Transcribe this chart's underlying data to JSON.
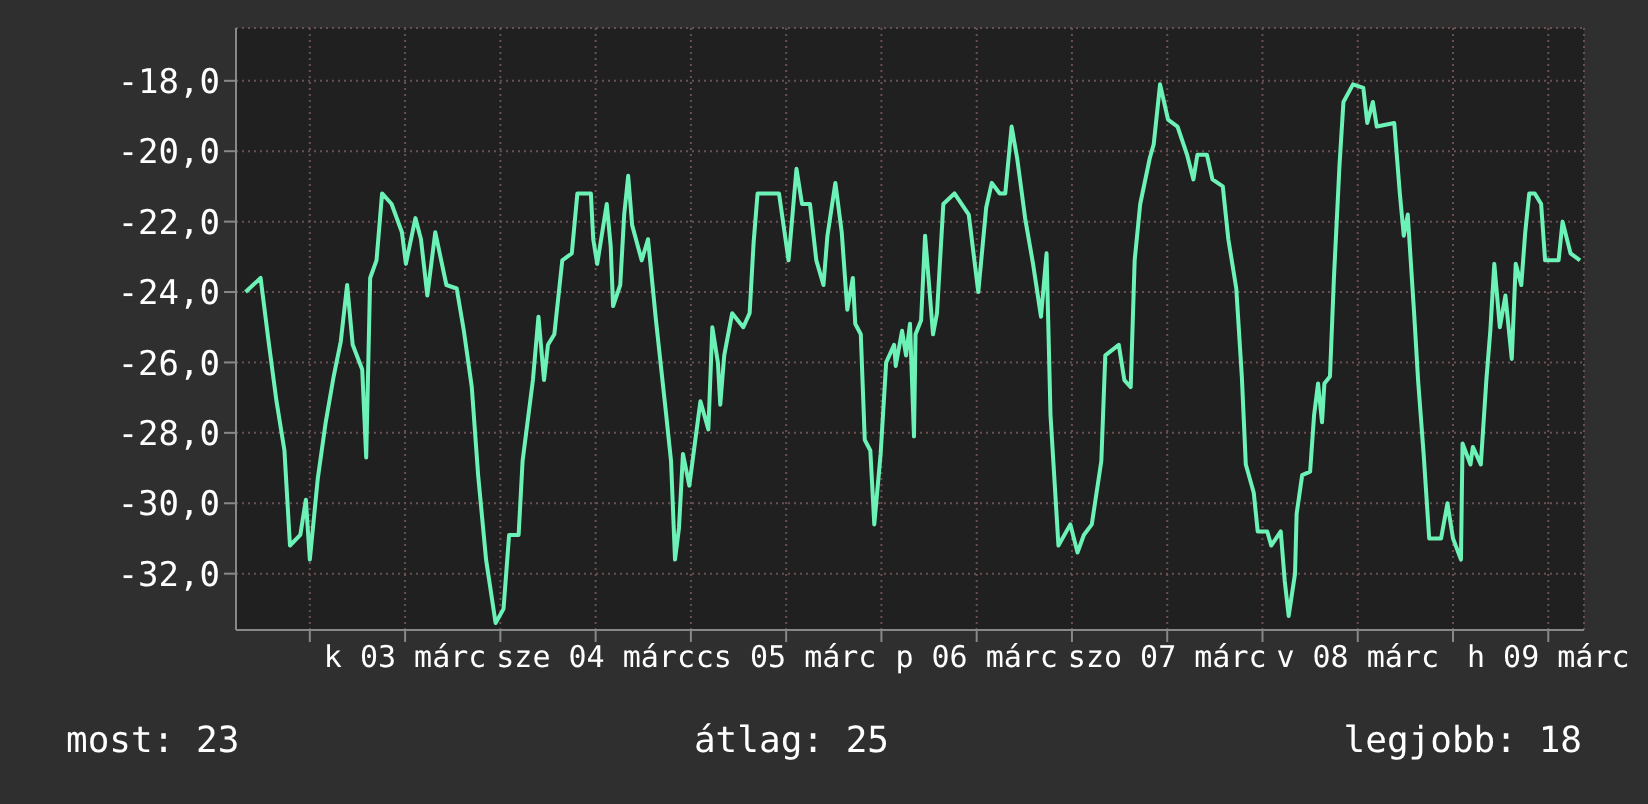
{
  "chart_data": {
    "type": "line",
    "x": [
      "--03-02T15:54",
      "--03-02T17:48",
      "--03-02T18:48",
      "--03-02T19:48",
      "--03-02T20:48",
      "--03-02T21:30",
      "--03-02T22:48",
      "--03-02T23:30",
      "--03-03T00:00",
      "--03-03T01:00",
      "--03-03T02:00",
      "--03-03T03:00",
      "--03-03T03:54",
      "--03-03T04:42",
      "--03-03T05:24",
      "--03-03T06:36",
      "--03-03T07:06",
      "--03-03T07:36",
      "--03-03T08:24",
      "--03-03T09:06",
      "--03-03T10:18",
      "--03-03T11:36",
      "--03-03T12:06",
      "--03-03T13:18",
      "--03-03T14:00",
      "--03-03T14:48",
      "--03-03T15:48",
      "--03-03T17:12",
      "--03-03T18:30",
      "--03-03T19:24",
      "--03-03T20:24",
      "--03-03T21:12",
      "--03-03T22:12",
      "--03-03T23:24",
      "--03-04T00:24",
      "--03-04T01:06",
      "--03-04T02:18",
      "--03-04T02:48",
      "--03-04T04:06",
      "--03-04T04:48",
      "--03-04T05:30",
      "--03-04T06:00",
      "--03-04T06:48",
      "--03-04T07:48",
      "--03-04T09:00",
      "--03-04T09:42",
      "--03-04T11:24",
      "--03-04T11:42",
      "--03-04T12:12",
      "--03-04T13:24",
      "--03-04T13:54",
      "--03-04T14:12",
      "--03-04T15:06",
      "--03-04T15:36",
      "--03-04T16:06",
      "--03-04T16:36",
      "--03-04T17:48",
      "--03-04T18:36",
      "--03-04T19:36",
      "--03-04T20:48",
      "--03-04T21:30",
      "--03-04T22:00",
      "--03-04T22:30",
      "--03-04T23:00",
      "--03-04T23:48",
      "--03-05T00:30",
      "--03-05T01:12",
      "--03-05T02:12",
      "--03-05T02:42",
      "--03-05T03:24",
      "--03-05T03:42",
      "--03-05T04:12",
      "--03-05T05:12",
      "--03-05T06:36",
      "--03-05T07:24",
      "--03-05T07:54",
      "--03-05T08:24",
      "--03-05T11:06",
      "--03-05T12:18",
      "--03-05T13:18",
      "--03-05T14:00",
      "--03-05T15:00",
      "--03-05T15:48",
      "--03-05T16:42",
      "--03-05T17:12",
      "--03-05T18:12",
      "--03-05T19:00",
      "--03-05T19:42",
      "--03-05T20:24",
      "--03-05T20:42",
      "--03-05T21:24",
      "--03-05T21:54",
      "--03-05T22:36",
      "--03-05T23:06",
      "--03-05T23:54",
      "--03-06T00:36",
      "--03-06T01:36",
      "--03-06T01:48",
      "--03-06T02:36",
      "--03-06T03:06",
      "--03-06T03:36",
      "--03-06T04:06",
      "--03-06T04:18",
      "--03-06T05:00",
      "--03-06T05:30",
      "--03-06T06:00",
      "--03-06T06:30",
      "--03-06T07:00",
      "--03-06T07:48",
      "--03-06T09:12",
      "--03-06T11:00",
      "--03-06T12:12",
      "--03-06T13:12",
      "--03-06T13:54",
      "--03-06T14:54",
      "--03-06T15:36",
      "--03-06T16:24",
      "--03-06T17:06",
      "--03-06T18:06",
      "--03-06T19:06",
      "--03-06T20:06",
      "--03-06T20:48",
      "--03-06T21:18",
      "--03-06T22:18",
      "--03-06T23:48",
      "--03-07T00:42",
      "--03-07T01:30",
      "--03-07T02:30",
      "--03-07T03:42",
      "--03-07T04:12",
      "--03-07T05:54",
      "--03-07T06:36",
      "--03-07T07:24",
      "--03-07T07:54",
      "--03-07T08:36",
      "--03-07T09:48",
      "--03-07T10:18",
      "--03-07T11:06",
      "--03-07T12:06",
      "--03-07T13:18",
      "--03-07T14:30",
      "--03-07T15:18",
      "--03-07T15:48",
      "--03-07T17:00",
      "--03-07T17:42",
      "--03-07T19:00",
      "--03-07T19:42",
      "--03-07T20:42",
      "--03-07T21:24",
      "--03-07T21:54",
      "--03-07T22:54",
      "--03-07T23:24",
      "--03-08T00:36",
      "--03-08T01:06",
      "--03-08T02:18",
      "--03-08T02:48",
      "--03-08T03:18",
      "--03-08T04:06",
      "--03-08T04:18",
      "--03-08T05:00",
      "--03-08T06:00",
      "--03-08T06:30",
      "--03-08T07:00",
      "--03-08T07:30",
      "--03-08T07:48",
      "--03-08T08:30",
      "--03-08T09:00",
      "--03-08T09:42",
      "--03-08T10:12",
      "--03-08T11:24",
      "--03-08T12:42",
      "--03-08T13:12",
      "--03-08T13:54",
      "--03-08T14:24",
      "--03-08T16:36",
      "--03-08T17:18",
      "--03-08T17:48",
      "--03-08T18:18",
      "--03-08T19:06",
      "--03-08T19:36",
      "--03-08T20:18",
      "--03-08T21:00",
      "--03-08T22:30",
      "--03-08T23:18",
      "--03-09T00:00",
      "--03-09T01:00",
      "--03-09T01:12",
      "--03-09T02:12",
      "--03-09T02:30",
      "--03-09T03:30",
      "--03-09T04:12",
      "--03-09T04:42",
      "--03-09T05:12",
      "--03-09T05:54",
      "--03-09T06:36",
      "--03-09T07:24",
      "--03-09T07:54",
      "--03-09T08:36",
      "--03-09T09:06",
      "--03-09T09:36",
      "--03-09T10:18",
      "--03-09T11:06",
      "--03-09T11:36",
      "--03-09T13:18",
      "--03-09T13:48",
      "--03-09T14:48",
      "--03-09T16:00"
    ],
    "series": [
      {
        "color": "#6cf2b6",
        "values": [
          -24.0,
          -23.6,
          -25.4,
          -27.1,
          -28.5,
          -31.2,
          -30.9,
          -29.9,
          -31.6,
          -29.3,
          -27.7,
          -26.4,
          -25.4,
          -23.8,
          -25.5,
          -26.2,
          -28.7,
          -23.6,
          -23.1,
          -21.2,
          -21.5,
          -22.3,
          -23.2,
          -21.9,
          -22.5,
          -24.1,
          -22.3,
          -23.8,
          -23.9,
          -25.1,
          -26.7,
          -29.2,
          -31.6,
          -33.4,
          -33.0,
          -30.9,
          -30.9,
          -28.8,
          -26.5,
          -24.7,
          -26.5,
          -25.5,
          -25.2,
          -23.1,
          -22.9,
          -21.2,
          -21.2,
          -22.5,
          -23.2,
          -21.5,
          -22.7,
          -24.4,
          -23.8,
          -21.8,
          -20.7,
          -22.1,
          -23.1,
          -22.5,
          -24.8,
          -27.3,
          -28.8,
          -31.6,
          -30.7,
          -28.6,
          -29.5,
          -28.3,
          -27.1,
          -27.9,
          -25.0,
          -26.0,
          -27.2,
          -25.8,
          -24.6,
          -25.0,
          -24.6,
          -22.6,
          -21.2,
          -21.2,
          -23.1,
          -20.5,
          -21.5,
          -21.5,
          -23.1,
          -23.8,
          -22.4,
          -20.9,
          -22.3,
          -24.5,
          -23.6,
          -24.9,
          -25.2,
          -28.2,
          -28.5,
          -30.6,
          -28.6,
          -26.0,
          -25.5,
          -26.1,
          -25.1,
          -25.8,
          -24.9,
          -28.1,
          -25.2,
          -24.8,
          -22.4,
          -23.8,
          -25.2,
          -24.6,
          -21.5,
          -21.2,
          -21.8,
          -24.0,
          -21.6,
          -20.9,
          -21.2,
          -21.2,
          -19.3,
          -20.2,
          -21.9,
          -23.2,
          -24.7,
          -22.9,
          -27.5,
          -31.2,
          -30.6,
          -31.4,
          -30.9,
          -30.6,
          -28.8,
          -25.8,
          -25.5,
          -26.5,
          -26.7,
          -23.1,
          -21.5,
          -20.2,
          -19.8,
          -18.1,
          -19.1,
          -19.3,
          -20.1,
          -20.8,
          -20.1,
          -20.1,
          -20.8,
          -21.0,
          -22.5,
          -23.9,
          -26.4,
          -28.9,
          -29.7,
          -30.8,
          -30.8,
          -31.2,
          -30.8,
          -32.2,
          -33.2,
          -32.0,
          -30.3,
          -29.2,
          -29.1,
          -27.5,
          -26.6,
          -27.7,
          -26.6,
          -26.4,
          -23.6,
          -20.4,
          -18.6,
          -18.1,
          -18.2,
          -19.2,
          -18.6,
          -19.3,
          -19.2,
          -21.2,
          -22.4,
          -21.8,
          -24.6,
          -26.5,
          -28.6,
          -31.0,
          -31.0,
          -30.0,
          -31.0,
          -31.6,
          -28.3,
          -28.9,
          -28.4,
          -28.9,
          -26.5,
          -25.1,
          -23.2,
          -25.0,
          -24.1,
          -25.9,
          -23.2,
          -23.8,
          -22.3,
          -21.2,
          -21.2,
          -21.5,
          -23.1,
          -23.1,
          -22.0,
          -22.9,
          -23.1
        ]
      }
    ],
    "xlim": [
      "--03-02T14:42",
      "--03-09T16:30"
    ],
    "xticks": [
      {
        "value": "--03-03T00:00",
        "label": null
      },
      {
        "value": "--03-03T12:00",
        "label": "k 03 márc"
      },
      {
        "value": "--03-04T00:00",
        "label": null
      },
      {
        "value": "--03-04T12:00",
        "label": "sze 04 márc"
      },
      {
        "value": "--03-05T00:00",
        "label": null
      },
      {
        "value": "--03-05T12:00",
        "label": "cs 05 márc"
      },
      {
        "value": "--03-06T00:00",
        "label": null
      },
      {
        "value": "--03-06T12:00",
        "label": "p 06 márc"
      },
      {
        "value": "--03-07T00:00",
        "label": null
      },
      {
        "value": "--03-07T12:00",
        "label": "szo 07 márc"
      },
      {
        "value": "--03-08T00:00",
        "label": null
      },
      {
        "value": "--03-08T12:00",
        "label": "v 08 márc"
      },
      {
        "value": "--03-09T00:00",
        "label": null
      },
      {
        "value": "--03-09T12:00",
        "label": "h 09 márc"
      }
    ],
    "ylim": [
      -33.6,
      -16.5
    ],
    "yticks": [
      {
        "value": -32,
        "label": "-32,0"
      },
      {
        "value": -30,
        "label": "-30,0"
      },
      {
        "value": -28,
        "label": "-28,0"
      },
      {
        "value": -26,
        "label": "-26,0"
      },
      {
        "value": -24,
        "label": "-24,0"
      },
      {
        "value": -22,
        "label": "-22,0"
      },
      {
        "value": -20,
        "label": "-20,0"
      },
      {
        "value": -18,
        "label": "-18,0"
      }
    ],
    "grid": true,
    "annotations": [
      "most: 23",
      "átlag: 25",
      "legjobb: 18"
    ]
  }
}
